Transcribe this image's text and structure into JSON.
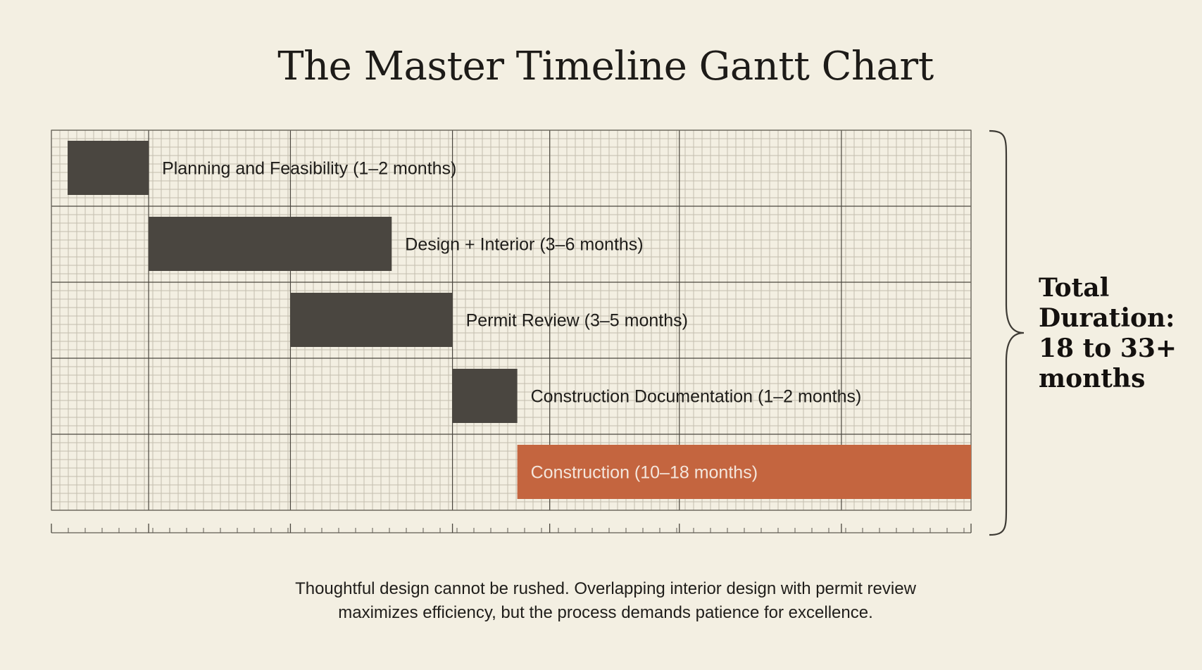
{
  "chart_data": {
    "type": "gantt",
    "title": "The Master Timeline Gantt Chart",
    "tasks": [
      {
        "label": "Planning and Feasibility (1–2 months)",
        "start": 0,
        "end": 2,
        "color": "#4a4640"
      },
      {
        "label": "Design + Interior (3–6 months)",
        "start": 2,
        "end": 8,
        "color": "#4a4640"
      },
      {
        "label": "Permit Review (3–5 months)",
        "start": 5.5,
        "end": 9.5,
        "color": "#4a4640"
      },
      {
        "label": "Construction Documentation (1–2 months)",
        "start": 9.5,
        "end": 11.1,
        "color": "#4a4640"
      },
      {
        "label": "Construction (10–18 months)",
        "start": 11.1,
        "end": 22.3,
        "color": "#c4653f"
      }
    ],
    "xlim": [
      -0.4,
      22.3
    ],
    "major_ticks": [
      -0.4,
      2,
      5.5,
      9.5,
      11.9,
      15.1,
      19.1,
      22.3
    ],
    "grid": true
  },
  "total": {
    "line1": "Total",
    "line2": "Duration:",
    "line3": "18 to 33+",
    "line4": "months"
  },
  "caption": {
    "line1": "Thoughtful design cannot be rushed. Overlapping interior design with permit review",
    "line2": "maximizes efficiency, but the process demands patience for excellence."
  },
  "colors": {
    "background": "#f3efe2",
    "bar_dark": "#4a4640",
    "bar_accent": "#c4653f",
    "grid_major": "#4a463e",
    "grid_minor": "#c3beae"
  }
}
